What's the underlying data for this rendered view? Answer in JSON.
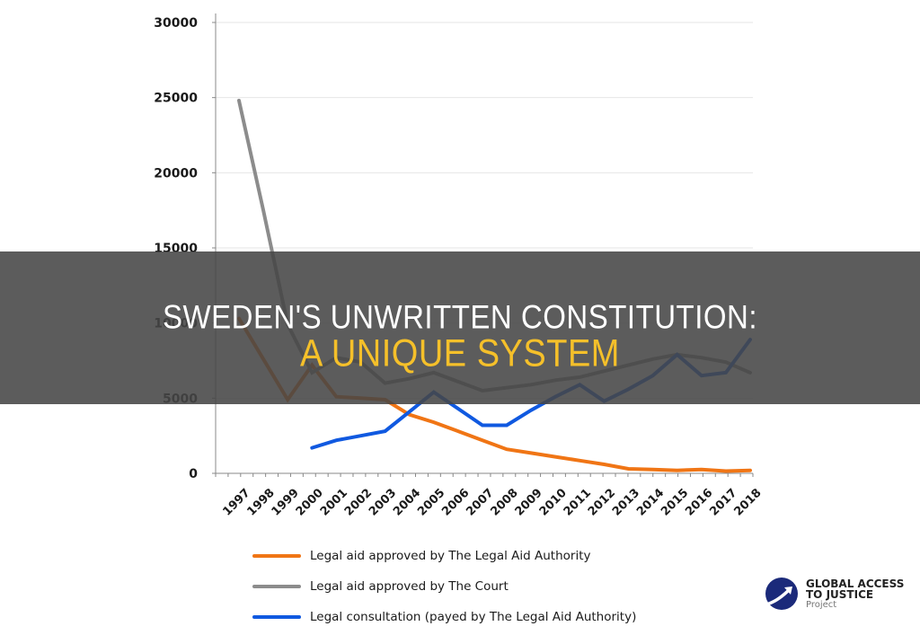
{
  "title": {
    "line1": "SWEDEN'S UNWRITTEN CONSTITUTION:",
    "line2": "A UNIQUE SYSTEM"
  },
  "colors": {
    "overlay": "#474747",
    "title_white": "#ffffff",
    "title_yellow": "#f5c02a"
  },
  "logo": {
    "line1": "GLOBAL ACCESS",
    "line2": "TO JUSTICE",
    "line3": "Project",
    "icon": "globe-arrow-icon"
  },
  "chart_data": {
    "type": "line",
    "title": "",
    "xlabel": "",
    "ylabel": "",
    "ylim": [
      0,
      30000
    ],
    "yticks": [
      0,
      5000,
      10000,
      15000,
      20000,
      25000,
      30000
    ],
    "grid": true,
    "legend_position": "bottom",
    "x": [
      "1997",
      "1998",
      "1999",
      "2000",
      "2001",
      "2002",
      "2003",
      "2004",
      "2005",
      "2006",
      "2007",
      "2008",
      "2009",
      "2010",
      "2011",
      "2012",
      "2013",
      "2014",
      "2015",
      "2016",
      "2017",
      "2018"
    ],
    "series": [
      {
        "name": "Legal aid approved by The Legal Aid Authority",
        "color": "#f07515",
        "values": [
          10300,
          7600,
          4900,
          7200,
          5100,
          5000,
          4900,
          3900,
          3400,
          2800,
          2200,
          1600,
          1350,
          1100,
          850,
          600,
          300,
          250,
          200,
          250,
          150,
          200
        ]
      },
      {
        "name": "Legal aid approved by The Court",
        "color": "#8c8c8c",
        "values": [
          24800,
          17500,
          9900,
          6700,
          7700,
          7400,
          6000,
          6300,
          6700,
          6100,
          5500,
          5700,
          5900,
          6200,
          6400,
          6800,
          7200,
          7600,
          7900,
          7700,
          7400,
          6700
        ]
      },
      {
        "name": "Legal consultation (payed by The Legal Aid Authority)",
        "color": "#1059e0",
        "values": [
          null,
          null,
          null,
          1700,
          2200,
          2500,
          2800,
          4100,
          5400,
          4300,
          3200,
          3200,
          4200,
          5100,
          5900,
          4800,
          5600,
          6500,
          7900,
          6500,
          6700,
          8900
        ]
      }
    ]
  }
}
